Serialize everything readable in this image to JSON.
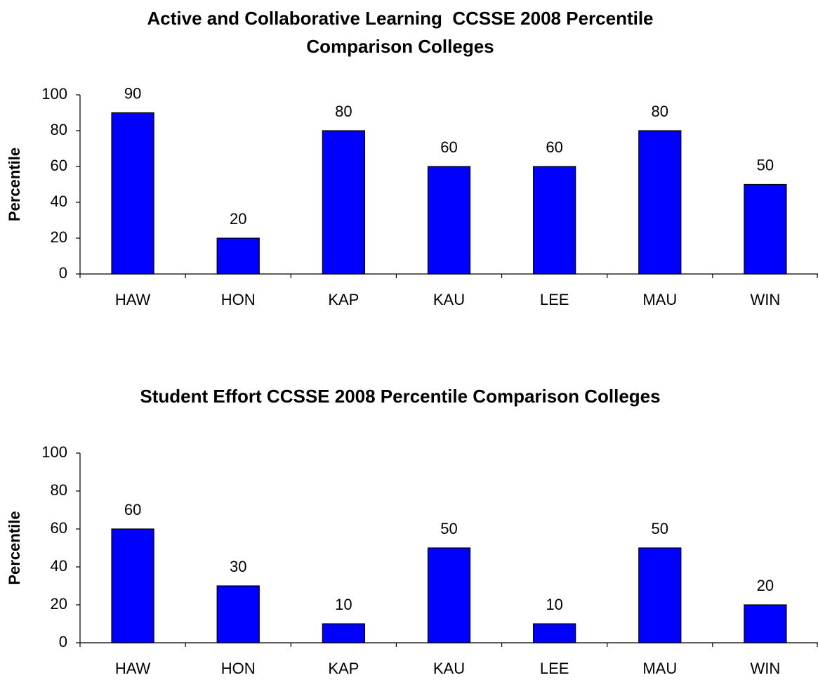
{
  "chart_data": [
    {
      "type": "bar",
      "title": [
        "Active and Collaborative Learning  CCSSE 2008 Percentile",
        "Comparison Colleges"
      ],
      "y_label": "Percentile",
      "categories": [
        "HAW",
        "HON",
        "KAP",
        "KAU",
        "LEE",
        "MAU",
        "WIN"
      ],
      "values": [
        90,
        20,
        80,
        60,
        60,
        80,
        50
      ],
      "color": "#0000ff",
      "ylim": [
        0,
        100
      ],
      "yticks": [
        0,
        20,
        40,
        60,
        80,
        100
      ],
      "grid": false
    },
    {
      "type": "bar",
      "title": [
        "Student Effort CCSSE 2008 Percentile Comparison Colleges"
      ],
      "y_label": "Percentile",
      "categories": [
        "HAW",
        "HON",
        "KAP",
        "KAU",
        "LEE",
        "MAU",
        "WIN"
      ],
      "values": [
        60,
        30,
        10,
        50,
        10,
        50,
        20
      ],
      "color": "#0000ff",
      "ylim": [
        0,
        100
      ],
      "yticks": [
        0,
        20,
        40,
        60,
        80,
        100
      ],
      "grid": false
    }
  ]
}
